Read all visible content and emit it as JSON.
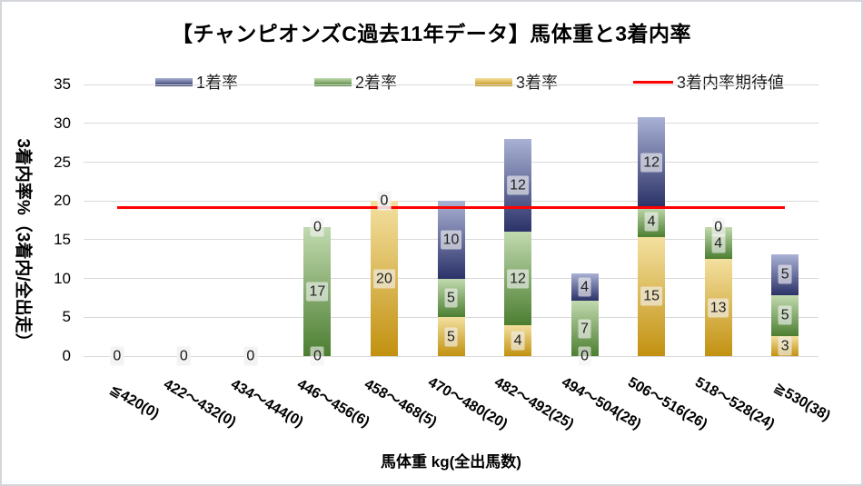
{
  "chart_data": {
    "type": "bar",
    "stacked": true,
    "title": "【チャンピオンズC過去11年データ】馬体重と3着内率",
    "ylabel": "3着内率%（3着内/全出走）",
    "xlabel": "馬体重 kg(全出馬数)",
    "ylim": [
      0,
      35
    ],
    "yticks": [
      0,
      5,
      10,
      15,
      20,
      25,
      30,
      35
    ],
    "grid": "horizontal",
    "legend_position": "top-center",
    "categories": [
      "≦420(0)",
      "422～432(0)",
      "434～444(0)",
      "446～456(6)",
      "458～468(5)",
      "470～480(20)",
      "482～492(25)",
      "494～504(28)",
      "506～516(26)",
      "518～528(24)",
      "≧530(38)"
    ],
    "series": [
      {
        "name": "3着率",
        "color_top": "#F3E0A0",
        "color_bottom": "#C29110",
        "values": [
          0,
          0,
          0,
          0,
          20,
          5,
          4,
          0,
          15.38,
          12.5,
          2.63
        ]
      },
      {
        "name": "2着率",
        "color_top": "#C1DAAF",
        "color_bottom": "#4C7E31",
        "values": [
          0,
          0,
          0,
          16.67,
          0,
          5,
          12,
          7.14,
          3.85,
          4.17,
          5.26
        ]
      },
      {
        "name": "1着率",
        "color_top": "#A9B1D4",
        "color_bottom": "#2B3268",
        "values": [
          0,
          0,
          0,
          0,
          0,
          10,
          12,
          3.57,
          11.54,
          0,
          5.26
        ]
      }
    ],
    "series_note": "stacking bottom-to-top: 3着率, 2着率, 1着率; data labels shown are rounded integers",
    "expected_line": {
      "name": "3着内率期待値",
      "value": 19.2,
      "color": "#FF0000"
    },
    "colors": {
      "gridline": "#D9D9D9",
      "label_box": "rgba(242,242,242,0.63)",
      "text": "#000000"
    }
  }
}
